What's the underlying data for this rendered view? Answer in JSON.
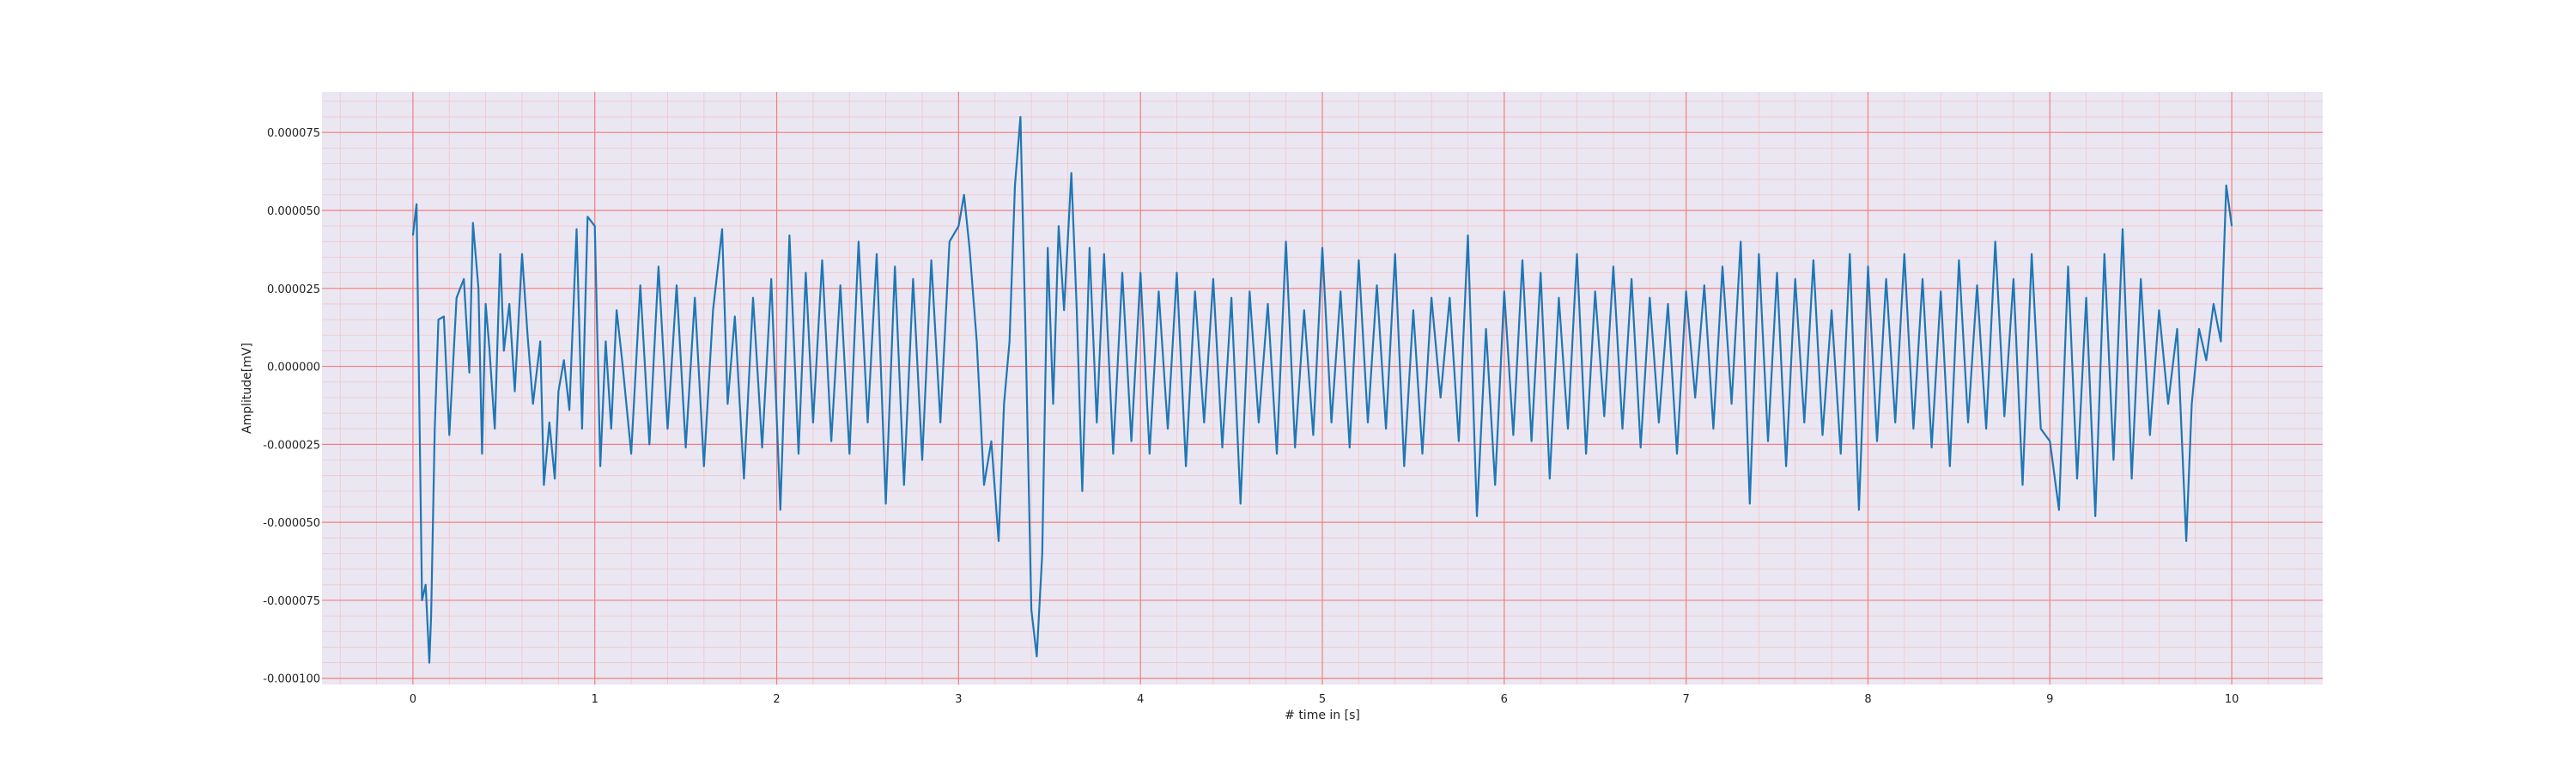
{
  "chart_data": {
    "type": "line",
    "title": "",
    "xlabel": "# time in [s]",
    "ylabel": "Amplitude[mV]",
    "xlim": [
      -0.5,
      10.5
    ],
    "ylim": [
      -0.000102,
      8.8e-05
    ],
    "x_ticks": [
      0,
      1,
      2,
      3,
      4,
      5,
      6,
      7,
      8,
      9,
      10
    ],
    "x_tick_labels": [
      "0",
      "1",
      "2",
      "3",
      "4",
      "5",
      "6",
      "7",
      "8",
      "9",
      "10"
    ],
    "y_ticks": [
      -0.0001,
      -7.5e-05,
      -5e-05,
      -2.5e-05,
      0,
      2.5e-05,
      5e-05,
      7.5e-05
    ],
    "y_tick_labels": [
      "-0.000100",
      "-0.000075",
      "-0.000050",
      "-0.000025",
      "0.000000",
      "0.000025",
      "0.000050",
      "0.000075"
    ],
    "grid": true,
    "minor_grid": true,
    "colors": {
      "plot_background": "#eae7f2",
      "major_grid": "#f08080",
      "minor_grid": "#f4c4c8",
      "line": "#1f77b4"
    },
    "series": [
      {
        "x": [
          0,
          0.02,
          0.05,
          0.07,
          0.09,
          0.1,
          0.12,
          0.14,
          0.17,
          0.2,
          0.24,
          0.28,
          0.31,
          0.33,
          0.36,
          0.38,
          0.4,
          0.42,
          0.45,
          0.48,
          0.5,
          0.53,
          0.56,
          0.6,
          0.63,
          0.66,
          0.7,
          0.72,
          0.75,
          0.78,
          0.8,
          0.83,
          0.86,
          0.9,
          0.93,
          0.96,
          1.0,
          1.03,
          1.06,
          1.09,
          1.12,
          1.15,
          1.2,
          1.25,
          1.3,
          1.35,
          1.4,
          1.45,
          1.5,
          1.55,
          1.6,
          1.65,
          1.7,
          1.73,
          1.77,
          1.82,
          1.87,
          1.92,
          1.97,
          2.02,
          2.07,
          2.12,
          2.16,
          2.2,
          2.25,
          2.3,
          2.35,
          2.4,
          2.45,
          2.5,
          2.55,
          2.6,
          2.65,
          2.7,
          2.75,
          2.8,
          2.85,
          2.9,
          2.95,
          3.0,
          3.03,
          3.06,
          3.1,
          3.14,
          3.18,
          3.22,
          3.25,
          3.28,
          3.31,
          3.34,
          3.37,
          3.4,
          3.43,
          3.46,
          3.49,
          3.52,
          3.55,
          3.58,
          3.62,
          3.65,
          3.68,
          3.72,
          3.76,
          3.8,
          3.85,
          3.9,
          3.95,
          4.0,
          4.05,
          4.1,
          4.15,
          4.2,
          4.25,
          4.3,
          4.35,
          4.4,
          4.45,
          4.5,
          4.55,
          4.6,
          4.65,
          4.7,
          4.75,
          4.8,
          4.85,
          4.9,
          4.95,
          5.0,
          5.05,
          5.1,
          5.15,
          5.2,
          5.25,
          5.3,
          5.35,
          5.4,
          5.45,
          5.5,
          5.55,
          5.6,
          5.65,
          5.7,
          5.75,
          5.8,
          5.85,
          5.9,
          5.95,
          6.0,
          6.05,
          6.1,
          6.15,
          6.2,
          6.25,
          6.3,
          6.35,
          6.4,
          6.45,
          6.5,
          6.55,
          6.6,
          6.65,
          6.7,
          6.75,
          6.8,
          6.85,
          6.9,
          6.95,
          7.0,
          7.05,
          7.1,
          7.15,
          7.2,
          7.25,
          7.3,
          7.35,
          7.4,
          7.45,
          7.5,
          7.55,
          7.6,
          7.65,
          7.7,
          7.75,
          7.8,
          7.85,
          7.9,
          7.95,
          8.0,
          8.05,
          8.1,
          8.15,
          8.2,
          8.25,
          8.3,
          8.35,
          8.4,
          8.45,
          8.5,
          8.55,
          8.6,
          8.65,
          8.7,
          8.75,
          8.8,
          8.85,
          8.9,
          8.95,
          9.0,
          9.05,
          9.1,
          9.15,
          9.2,
          9.25,
          9.3,
          9.35,
          9.4,
          9.45,
          9.5,
          9.55,
          9.6,
          9.65,
          9.7,
          9.75,
          9.78,
          9.82,
          9.86,
          9.9,
          9.94,
          9.97,
          10.0
        ],
        "y": [
          4.2e-05,
          5.2e-05,
          -7.5e-05,
          -7e-05,
          -9.5e-05,
          -8e-05,
          -2e-05,
          1.5e-05,
          1.6e-05,
          -2.2e-05,
          2.2e-05,
          2.8e-05,
          -2e-06,
          4.6e-05,
          2.5e-05,
          -2.8e-05,
          2e-05,
          6e-06,
          -2e-05,
          3.6e-05,
          5e-06,
          2e-05,
          -8e-06,
          3.6e-05,
          1e-05,
          -1.2e-05,
          8e-06,
          -3.8e-05,
          -1.8e-05,
          -3.6e-05,
          -8e-06,
          2e-06,
          -1.4e-05,
          4.4e-05,
          -2e-05,
          4.8e-05,
          4.5e-05,
          -3.2e-05,
          8e-06,
          -2e-05,
          1.8e-05,
          2e-06,
          -2.8e-05,
          2.6e-05,
          -2.5e-05,
          3.2e-05,
          -2e-05,
          2.6e-05,
          -2.6e-05,
          2.2e-05,
          -3.2e-05,
          1.8e-05,
          4.4e-05,
          -1.2e-05,
          1.6e-05,
          -3.6e-05,
          2.2e-05,
          -2.6e-05,
          2.8e-05,
          -4.6e-05,
          4.2e-05,
          -2.8e-05,
          3e-05,
          -1.8e-05,
          3.4e-05,
          -2.4e-05,
          2.6e-05,
          -2.8e-05,
          4e-05,
          -1.8e-05,
          3.6e-05,
          -4.4e-05,
          3.2e-05,
          -3.8e-05,
          2.8e-05,
          -3e-05,
          3.4e-05,
          -1.8e-05,
          4e-05,
          4.5e-05,
          5.5e-05,
          3.8e-05,
          8e-06,
          -3.8e-05,
          -2.4e-05,
          -5.6e-05,
          -1.2e-05,
          8e-06,
          5.8e-05,
          8e-05,
          6e-06,
          -7.8e-05,
          -9.3e-05,
          -6e-05,
          3.8e-05,
          -1.2e-05,
          4.5e-05,
          1.8e-05,
          6.2e-05,
          1.8e-05,
          -4e-05,
          3.8e-05,
          -1.8e-05,
          3.6e-05,
          -2.8e-05,
          3e-05,
          -2.4e-05,
          3e-05,
          -2.8e-05,
          2.4e-05,
          -2e-05,
          3e-05,
          -3.2e-05,
          2.4e-05,
          -1.8e-05,
          2.8e-05,
          -2.6e-05,
          2.2e-05,
          -4.4e-05,
          2.4e-05,
          -1.8e-05,
          2e-05,
          -2.8e-05,
          4e-05,
          -2.6e-05,
          1.8e-05,
          -2.2e-05,
          3.8e-05,
          -1.8e-05,
          2.4e-05,
          -2.6e-05,
          3.4e-05,
          -1.8e-05,
          2.6e-05,
          -2e-05,
          3.6e-05,
          -3.2e-05,
          1.8e-05,
          -2.8e-05,
          2.2e-05,
          -1e-05,
          2.2e-05,
          -2.4e-05,
          4.2e-05,
          -4.8e-05,
          1.2e-05,
          -3.8e-05,
          2.4e-05,
          -2.2e-05,
          3.4e-05,
          -2.4e-05,
          3e-05,
          -3.6e-05,
          2.2e-05,
          -2e-05,
          3.6e-05,
          -2.8e-05,
          2.4e-05,
          -1.6e-05,
          3.2e-05,
          -2e-05,
          2.8e-05,
          -2.6e-05,
          2.2e-05,
          -1.8e-05,
          2e-05,
          -2.8e-05,
          2.4e-05,
          -1e-05,
          2.6e-05,
          -2e-05,
          3.2e-05,
          -1.2e-05,
          4e-05,
          -4.4e-05,
          3.6e-05,
          -2.4e-05,
          3e-05,
          -3.2e-05,
          2.8e-05,
          -1.8e-05,
          3.4e-05,
          -2.2e-05,
          1.8e-05,
          -2.8e-05,
          3.6e-05,
          -4.6e-05,
          3.2e-05,
          -2.4e-05,
          2.8e-05,
          -1.8e-05,
          3.6e-05,
          -2e-05,
          2.8e-05,
          -2.6e-05,
          2.4e-05,
          -3.2e-05,
          3.4e-05,
          -1.8e-05,
          2.6e-05,
          -2e-05,
          4e-05,
          -1.6e-05,
          2.8e-05,
          -3.8e-05,
          3.6e-05,
          -2e-05,
          -2.4e-05,
          -4.6e-05,
          3.2e-05,
          -3.6e-05,
          2.2e-05,
          -4.8e-05,
          3.6e-05,
          -3e-05,
          4.4e-05,
          -3.6e-05,
          2.8e-05,
          -2.2e-05,
          1.8e-05,
          -1.2e-05,
          1.2e-05,
          -5.6e-05,
          -1.2e-05,
          1.2e-05,
          2e-06,
          2e-05,
          8e-06,
          5.8e-05,
          4.5e-05
        ]
      }
    ]
  }
}
